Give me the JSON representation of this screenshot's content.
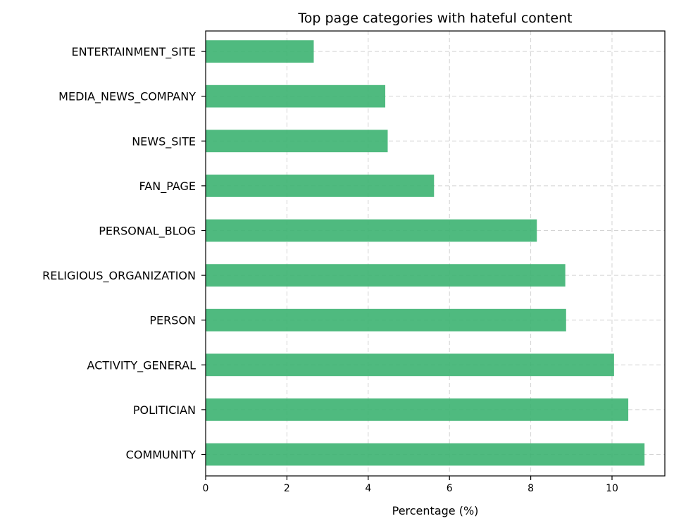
{
  "chart_data": {
    "type": "bar",
    "orientation": "horizontal",
    "title": "Top page categories with hateful content",
    "xlabel": "Percentage (%)",
    "ylabel": "",
    "xlim": [
      0,
      11.3
    ],
    "xticks": [
      0,
      2,
      4,
      6,
      8,
      10
    ],
    "grid": true,
    "bar_color": "#3cb371",
    "categories": [
      "COMMUNITY",
      "POLITICIAN",
      "ACTIVITY_GENERAL",
      "PERSON",
      "RELIGIOUS_ORGANIZATION",
      "PERSONAL_BLOG",
      "FAN_PAGE",
      "NEWS_SITE",
      "MEDIA_NEWS_COMPANY",
      "ENTERTAINMENT_SITE"
    ],
    "values": [
      10.8,
      10.4,
      10.05,
      8.87,
      8.85,
      8.15,
      5.62,
      4.48,
      4.42,
      2.66
    ]
  }
}
